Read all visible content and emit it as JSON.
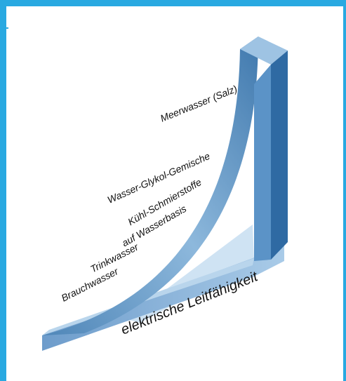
{
  "labels": [
    "Meerwasser (Salz)",
    "Wasser-Glykol-Gemische",
    "Kühl-Schmierstoffe",
    "auf Wasserbasis",
    "Trinkwasser",
    "Brauchwasser"
  ],
  "axis_label": "elektrische Leitfähigkeit"
}
